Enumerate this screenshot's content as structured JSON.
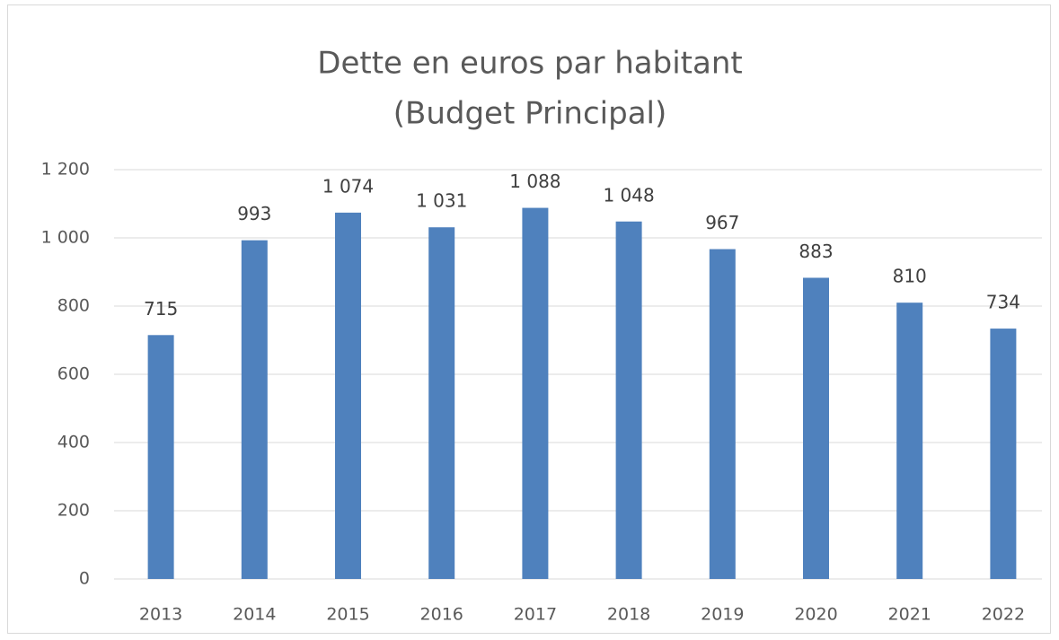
{
  "chart_data": {
    "type": "bar",
    "title": "Dette en euros par habitant",
    "subtitle": "(Budget Principal)",
    "categories": [
      "2013",
      "2014",
      "2015",
      "2016",
      "2017",
      "2018",
      "2019",
      "2020",
      "2021",
      "2022"
    ],
    "values": [
      715,
      993,
      1074,
      1031,
      1088,
      1048,
      967,
      883,
      810,
      734
    ],
    "value_labels": [
      "715",
      "993",
      "1 074",
      "1 031",
      "1 088",
      "1 048",
      "967",
      "883",
      "810",
      "734"
    ],
    "color": "#4f81bd",
    "ylim": [
      0,
      1200
    ],
    "yticks": [
      0,
      200,
      400,
      600,
      800,
      {
        "value": 1000,
        "label": "1 000"
      },
      {
        "value": 1200,
        "label": "1 200"
      }
    ],
    "grid": true
  }
}
